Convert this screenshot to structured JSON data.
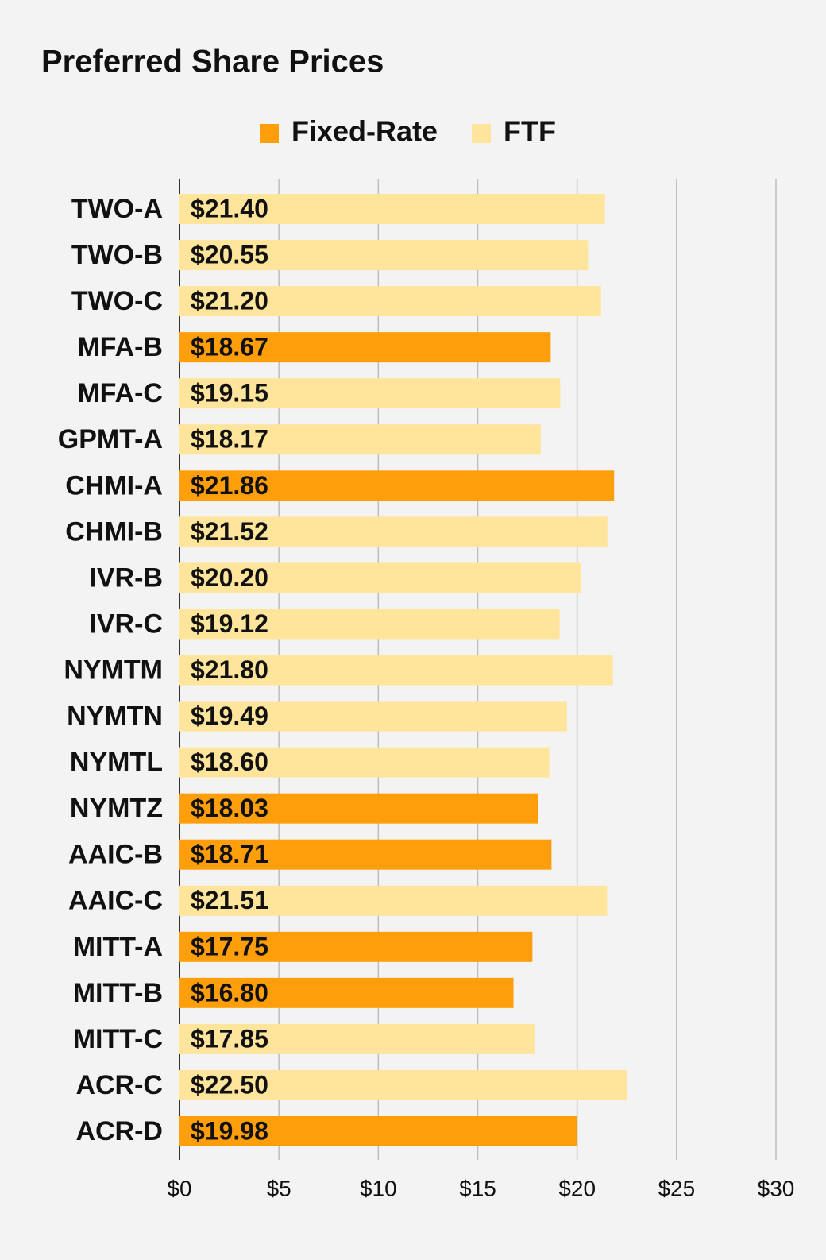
{
  "chart_data": {
    "type": "bar",
    "orientation": "horizontal",
    "title": "Preferred Share Prices",
    "categories": [
      "TWO-A",
      "TWO-B",
      "TWO-C",
      "MFA-B",
      "MFA-C",
      "GPMT-A",
      "CHMI-A",
      "CHMI-B",
      "IVR-B",
      "IVR-C",
      "NYMTM",
      "NYMTN",
      "NYMTL",
      "NYMTZ",
      "AAIC-B",
      "AAIC-C",
      "MITT-A",
      "MITT-B",
      "MITT-C",
      "ACR-C",
      "ACR-D"
    ],
    "series": [
      {
        "name": "Fixed-Rate",
        "color": "#ff9e0b",
        "values": [
          null,
          null,
          null,
          18.67,
          null,
          null,
          21.86,
          null,
          null,
          null,
          null,
          null,
          null,
          18.03,
          18.71,
          null,
          17.75,
          16.8,
          null,
          null,
          19.98
        ],
        "value_labels": [
          null,
          null,
          null,
          "$18.67",
          null,
          null,
          "$21.86",
          null,
          null,
          null,
          null,
          null,
          null,
          "$18.03",
          "$18.71",
          null,
          "$17.75",
          "$16.80",
          null,
          null,
          "$19.98"
        ]
      },
      {
        "name": "FTF",
        "color": "#fee59b",
        "values": [
          21.4,
          20.55,
          21.2,
          null,
          19.15,
          18.17,
          null,
          21.52,
          20.2,
          19.12,
          21.8,
          19.49,
          18.6,
          null,
          null,
          21.51,
          null,
          null,
          17.85,
          22.5,
          null
        ],
        "value_labels": [
          "$21.40",
          "$20.55",
          "$21.20",
          null,
          "$19.15",
          "$18.17",
          null,
          "$21.52",
          "$20.20",
          "$19.12",
          "$21.80",
          "$19.49",
          "$18.60",
          null,
          null,
          "$21.51",
          null,
          null,
          "$17.85",
          "$22.50",
          null
        ]
      }
    ],
    "xlim": [
      0,
      30
    ],
    "xticks": [
      {
        "value": 0,
        "label": "$0"
      },
      {
        "value": 5,
        "label": "$5"
      },
      {
        "value": 10,
        "label": "$10"
      },
      {
        "value": 15,
        "label": "$15"
      },
      {
        "value": 20,
        "label": "$20"
      },
      {
        "value": 25,
        "label": "$25"
      },
      {
        "value": 30,
        "label": "$30"
      }
    ],
    "grid": true,
    "legend": "top"
  }
}
